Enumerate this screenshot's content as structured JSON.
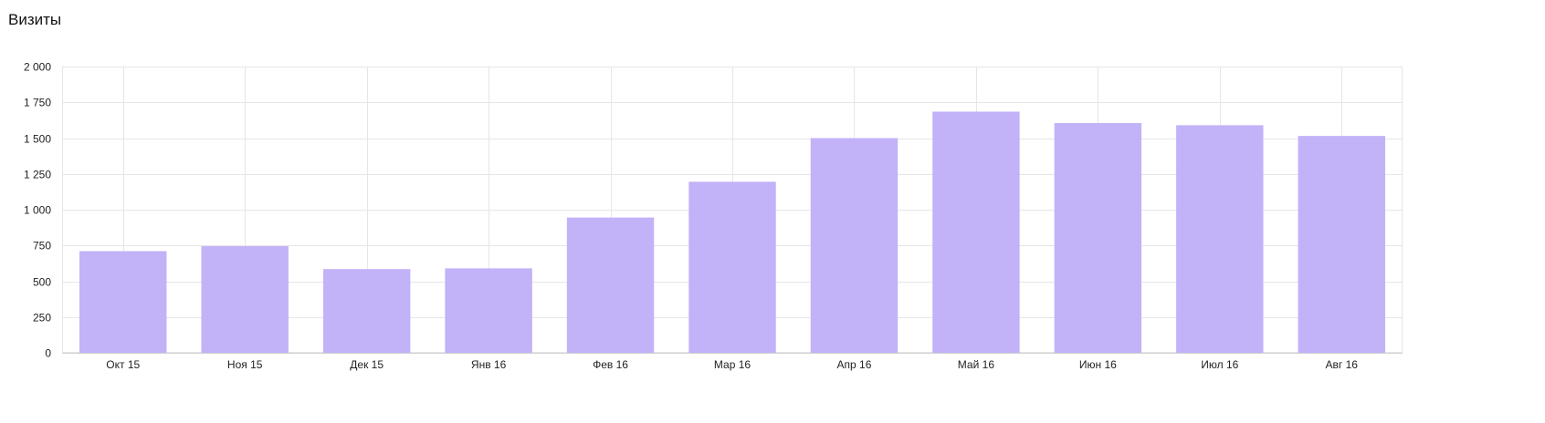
{
  "title": "Визиты",
  "chart_data": {
    "type": "bar",
    "title": "Визиты",
    "xlabel": "",
    "ylabel": "",
    "categories": [
      "Окт 15",
      "Ноя 15",
      "Дек 15",
      "Янв 16",
      "Фев 16",
      "Мар 16",
      "Апр 16",
      "Май 16",
      "Июн 16",
      "Июл 16",
      "Авг 16"
    ],
    "values": [
      710,
      745,
      585,
      590,
      945,
      1195,
      1500,
      1685,
      1605,
      1590,
      1515
    ],
    "ylim": [
      0,
      2000
    ],
    "yticks": [
      0,
      250,
      500,
      750,
      1000,
      1250,
      1500,
      1750,
      2000
    ],
    "ytick_labels": [
      "0",
      "250",
      "500",
      "750",
      "1 000",
      "1 250",
      "1 500",
      "1 750",
      "2 000"
    ],
    "grid": true,
    "legend": "none",
    "colors": {
      "bar": "#c2b2f8",
      "grid": "#e6e6e6",
      "axis": "#d0d0d0"
    }
  }
}
